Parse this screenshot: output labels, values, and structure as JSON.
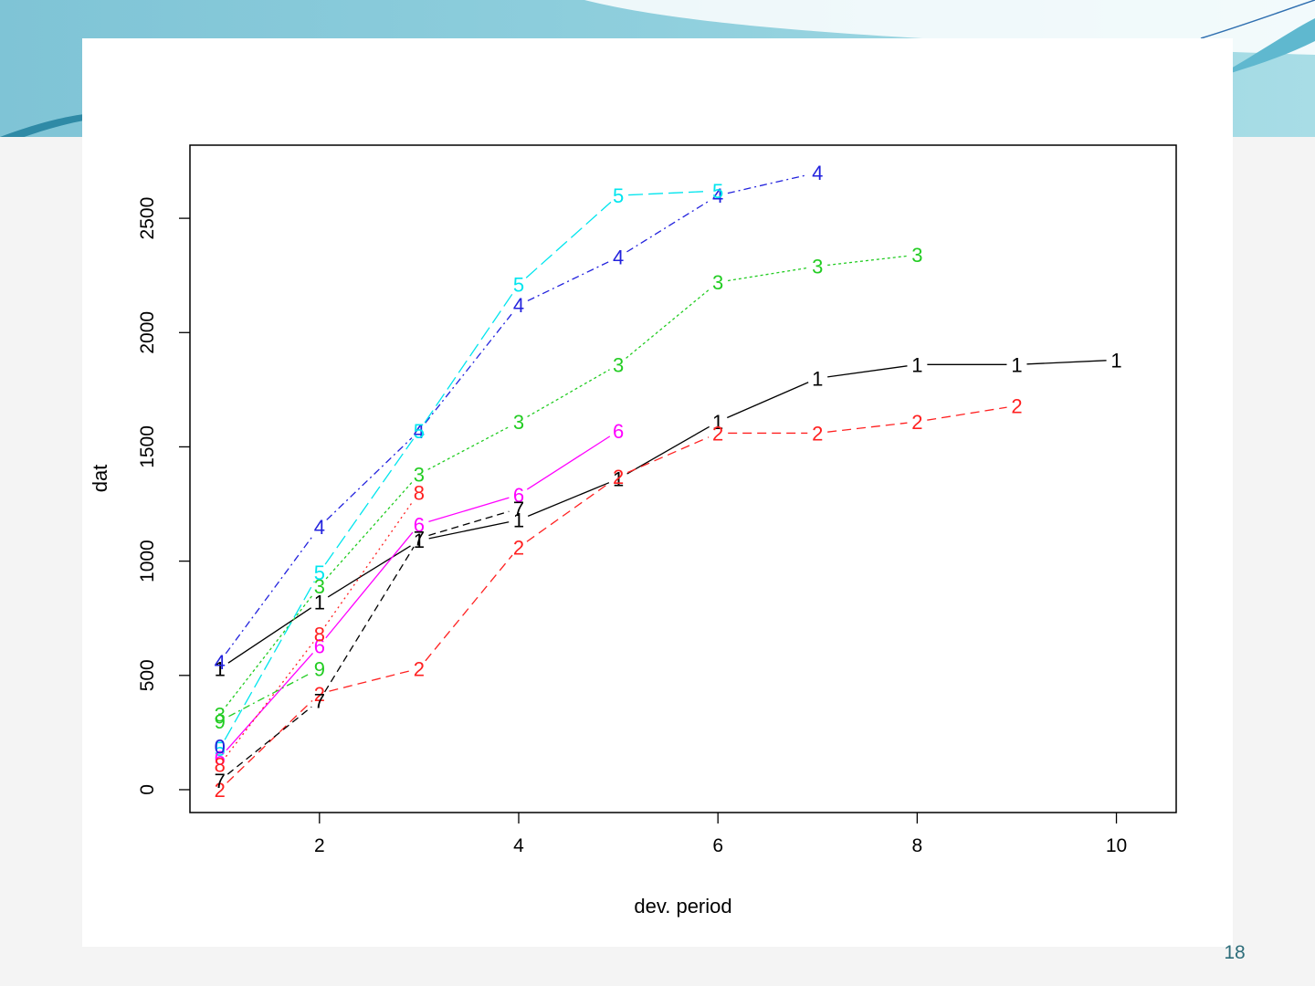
{
  "slide": {
    "number": "18",
    "colors": {
      "accent_light": "#a6d9e2",
      "accent_dark": "#2f8aa6",
      "swoosh": "#5fb8cf"
    }
  },
  "chart_data": {
    "type": "line",
    "title": "",
    "xlabel": "dev. period",
    "ylabel": "dat",
    "xlim": [
      0.7,
      10.6
    ],
    "ylim": [
      -100,
      2820
    ],
    "xticks": [
      2,
      4,
      6,
      8,
      10
    ],
    "yticks": [
      0,
      500,
      1000,
      1500,
      2000,
      2500
    ],
    "grid": false,
    "legend": "none",
    "series": [
      {
        "label": "1",
        "color": "#000000",
        "dash": "none",
        "x": [
          1,
          2,
          3,
          4,
          5,
          6,
          7,
          8,
          9,
          10
        ],
        "y": [
          530,
          820,
          1090,
          1180,
          1360,
          1610,
          1800,
          1860,
          1860,
          1880
        ]
      },
      {
        "label": "2",
        "color": "#ff2020",
        "dash": "10,6",
        "x": [
          1,
          2,
          3,
          4,
          5,
          6,
          7,
          8,
          9
        ],
        "y": [
          0,
          420,
          530,
          1060,
          1370,
          1560,
          1560,
          1610,
          1680
        ]
      },
      {
        "label": "3",
        "color": "#22cc22",
        "dash": "3,3",
        "x": [
          1,
          2,
          3,
          4,
          5,
          6,
          7,
          8
        ],
        "y": [
          330,
          890,
          1380,
          1610,
          1860,
          2220,
          2290,
          2340
        ]
      },
      {
        "label": "4",
        "color": "#2222dd",
        "dash": "8,4,2,4",
        "x": [
          1,
          2,
          3,
          4,
          5,
          6,
          7
        ],
        "y": [
          560,
          1150,
          1570,
          2120,
          2330,
          2600,
          2700
        ]
      },
      {
        "label": "5",
        "color": "#00e5ee",
        "dash": "16,6",
        "x": [
          1,
          2,
          3,
          4,
          5,
          6
        ],
        "y": [
          180,
          950,
          1570,
          2210,
          2600,
          2620
        ]
      },
      {
        "label": "6",
        "color": "#ff00ff",
        "dash": "none",
        "x": [
          1,
          2,
          3,
          4,
          5
        ],
        "y": [
          140,
          630,
          1160,
          1290,
          1570
        ]
      },
      {
        "label": "7",
        "color": "#000000",
        "dash": "8,5",
        "x": [
          1,
          2,
          3,
          4
        ],
        "y": [
          40,
          390,
          1100,
          1230
        ]
      },
      {
        "label": "8",
        "color": "#ff2020",
        "dash": "2,4",
        "x": [
          1,
          2,
          3
        ],
        "y": [
          110,
          680,
          1300
        ]
      },
      {
        "label": "9",
        "color": "#22cc22",
        "dash": "8,4,2,4",
        "x": [
          1,
          2
        ],
        "y": [
          300,
          530
        ]
      },
      {
        "label": "0",
        "color": "#2222dd",
        "dash": "none",
        "x": [
          1
        ],
        "y": [
          190
        ]
      }
    ]
  }
}
